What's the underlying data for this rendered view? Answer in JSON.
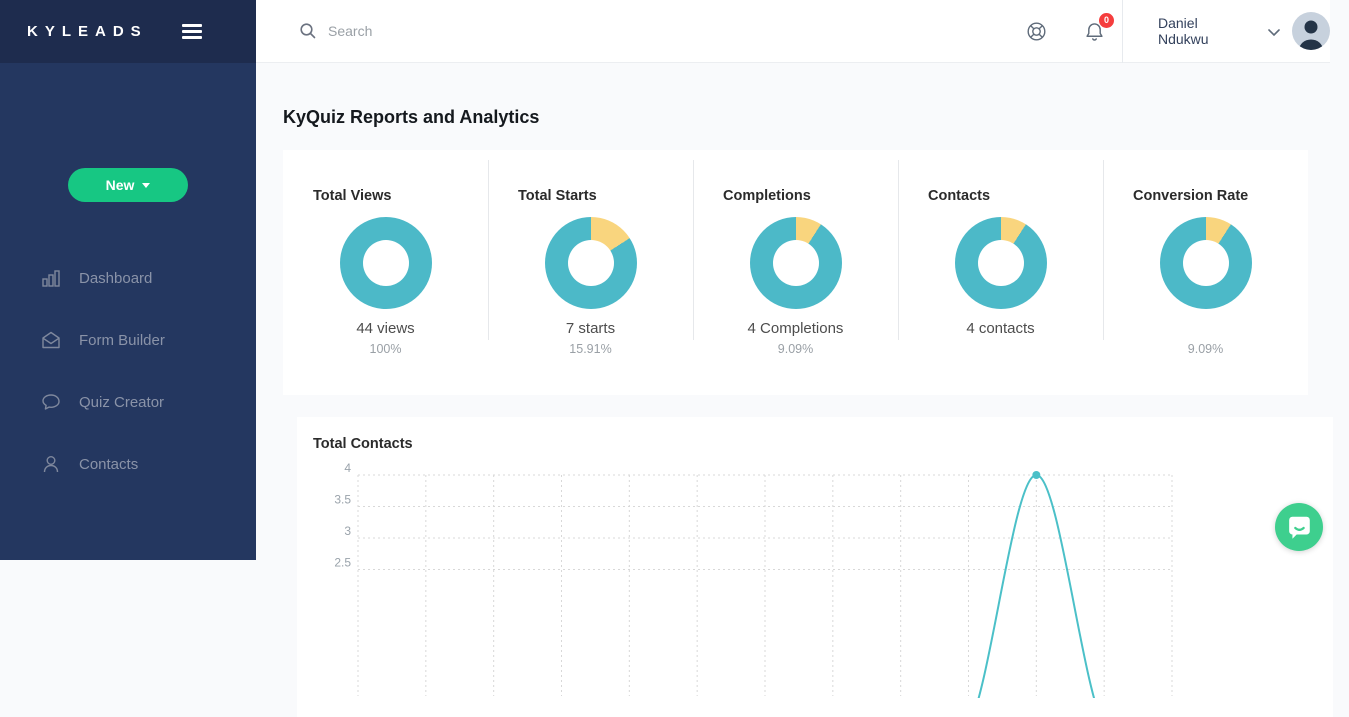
{
  "sidebar": {
    "logo": "KYLEADS",
    "new_button_label": "New",
    "items": [
      {
        "label": "Dashboard"
      },
      {
        "label": "Form Builder"
      },
      {
        "label": "Quiz Creator"
      },
      {
        "label": "Contacts"
      }
    ]
  },
  "topbar": {
    "search_placeholder": "Search",
    "notification_count": "0",
    "user_name": "Daniel Ndukwu"
  },
  "page": {
    "title": "KyQuiz Reports and Analytics"
  },
  "stats": {
    "cards": [
      {
        "title": "Total Views",
        "value": "44 views",
        "percent": "100%"
      },
      {
        "title": "Total Starts",
        "value": "7 starts",
        "percent": "15.91%"
      },
      {
        "title": "Completions",
        "value": "4 Completions",
        "percent": "9.09%"
      },
      {
        "title": "Contacts",
        "value": "4 contacts",
        "percent": ""
      },
      {
        "title": "Conversion Rate",
        "value": "",
        "percent": "9.09%"
      }
    ]
  },
  "chart_section": {
    "title": "Total Contacts"
  },
  "chart_data": [
    {
      "type": "line",
      "title": "Total Contacts",
      "x_tick_count": 13,
      "x_labels": [],
      "values": [
        0,
        0,
        0,
        0,
        0,
        0,
        0,
        0,
        0,
        0,
        4,
        0,
        0
      ],
      "y_ticks": [
        "4",
        "3.5",
        "3",
        "2.5"
      ],
      "y_top": 4,
      "y_step": 0.5,
      "grid": "dashed",
      "line_color": "#4bc0c8",
      "point_at_peak": true,
      "note": "bottom of plot cropped by viewport"
    },
    {
      "type": "donut",
      "title": "Total Views",
      "yellow_pct": 0,
      "teal_pct": 100
    },
    {
      "type": "donut",
      "title": "Total Starts",
      "yellow_pct": 15.91,
      "teal_pct": 84.09
    },
    {
      "type": "donut",
      "title": "Completions",
      "yellow_pct": 9.09,
      "teal_pct": 90.91
    },
    {
      "type": "donut",
      "title": "Contacts",
      "yellow_pct": 9.09,
      "teal_pct": 90.91
    },
    {
      "type": "donut",
      "title": "Conversion Rate",
      "yellow_pct": 9.09,
      "teal_pct": 90.91
    }
  ],
  "colors": {
    "accent_green": "#17c783",
    "chat_green": "#3ecf8e",
    "donut_teal": "#4cb9c8",
    "donut_yellow": "#f9d57e",
    "line_teal": "#4bc0c8",
    "badge_red": "#f53d3d",
    "grid_gray": "#d8d8d8"
  }
}
